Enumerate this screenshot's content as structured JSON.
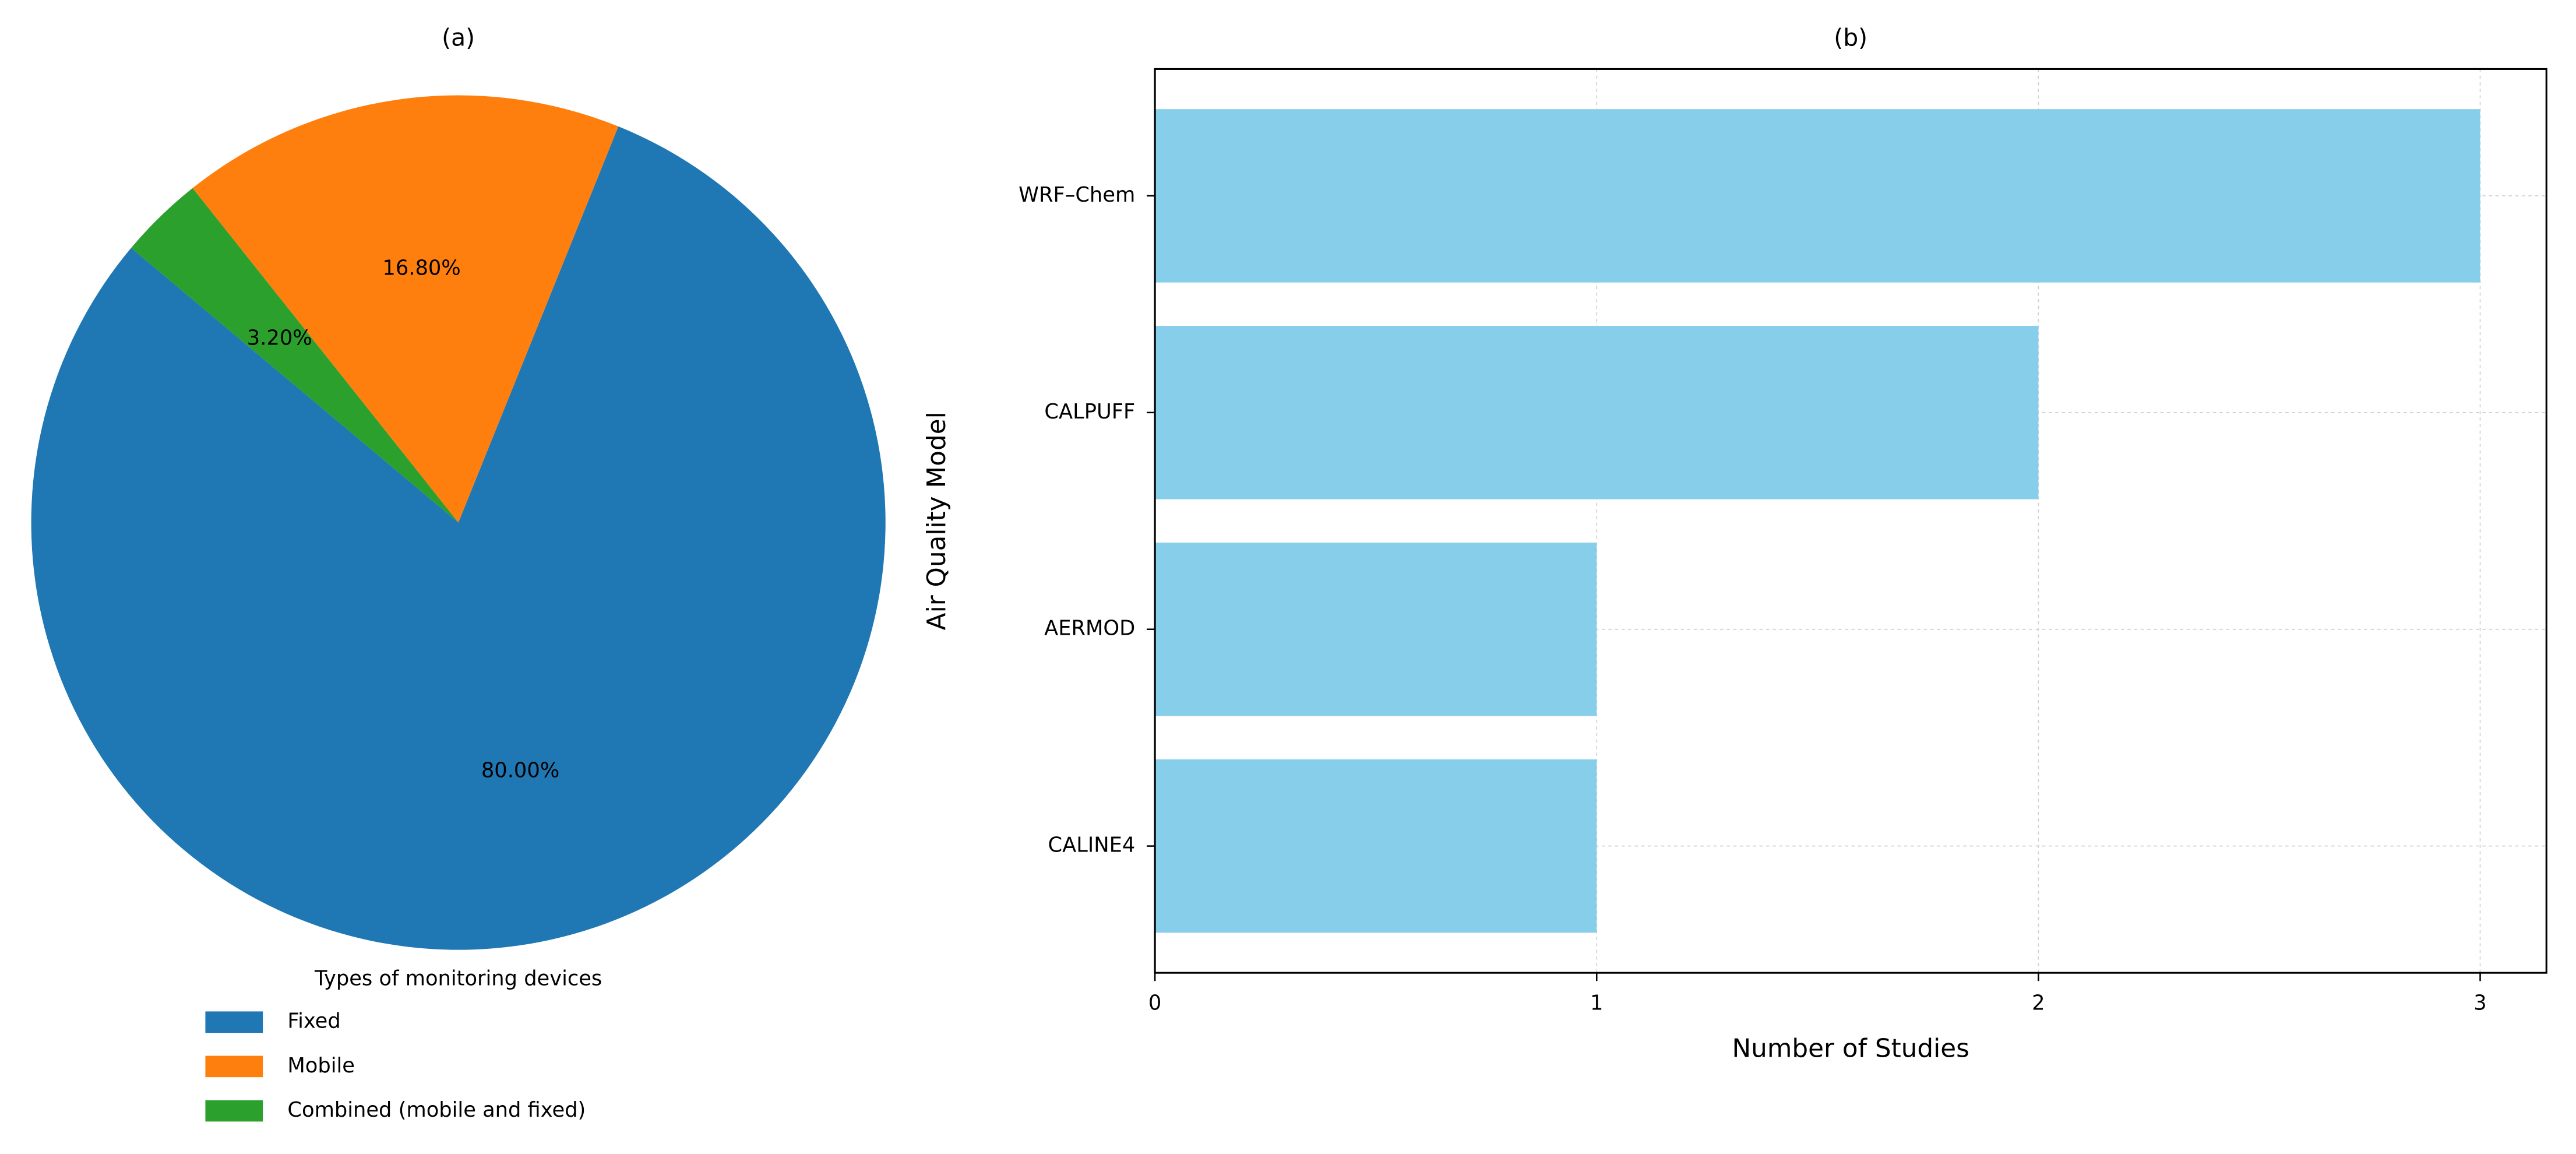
{
  "chart_data": [
    {
      "type": "pie",
      "title": "(a)",
      "categories": [
        "Fixed",
        "Mobile",
        "Combined (mobile and fixed)"
      ],
      "values": [
        80,
        16.8,
        3.2
      ],
      "value_labels": [
        "80.00%",
        "16.80%",
        "3.20%"
      ],
      "colors": [
        "#1f77b4",
        "#ff7f0e",
        "#2ca02c"
      ],
      "start_angle": 140,
      "legend_title": "Types of monitoring devices",
      "legend": "lower center"
    },
    {
      "type": "barh",
      "title": "(b)",
      "categories": [
        "CALINE4",
        "AERMOD",
        "CALPUFF",
        "WRF–Chem"
      ],
      "values": [
        1,
        1,
        2,
        3
      ],
      "color": "#87ceeb",
      "xlabel": "Number of Studies",
      "ylabel": "Air Quality Model",
      "xlim": [
        0,
        3.15
      ],
      "xticks": [
        0,
        1,
        2,
        3
      ],
      "grid": true
    }
  ]
}
